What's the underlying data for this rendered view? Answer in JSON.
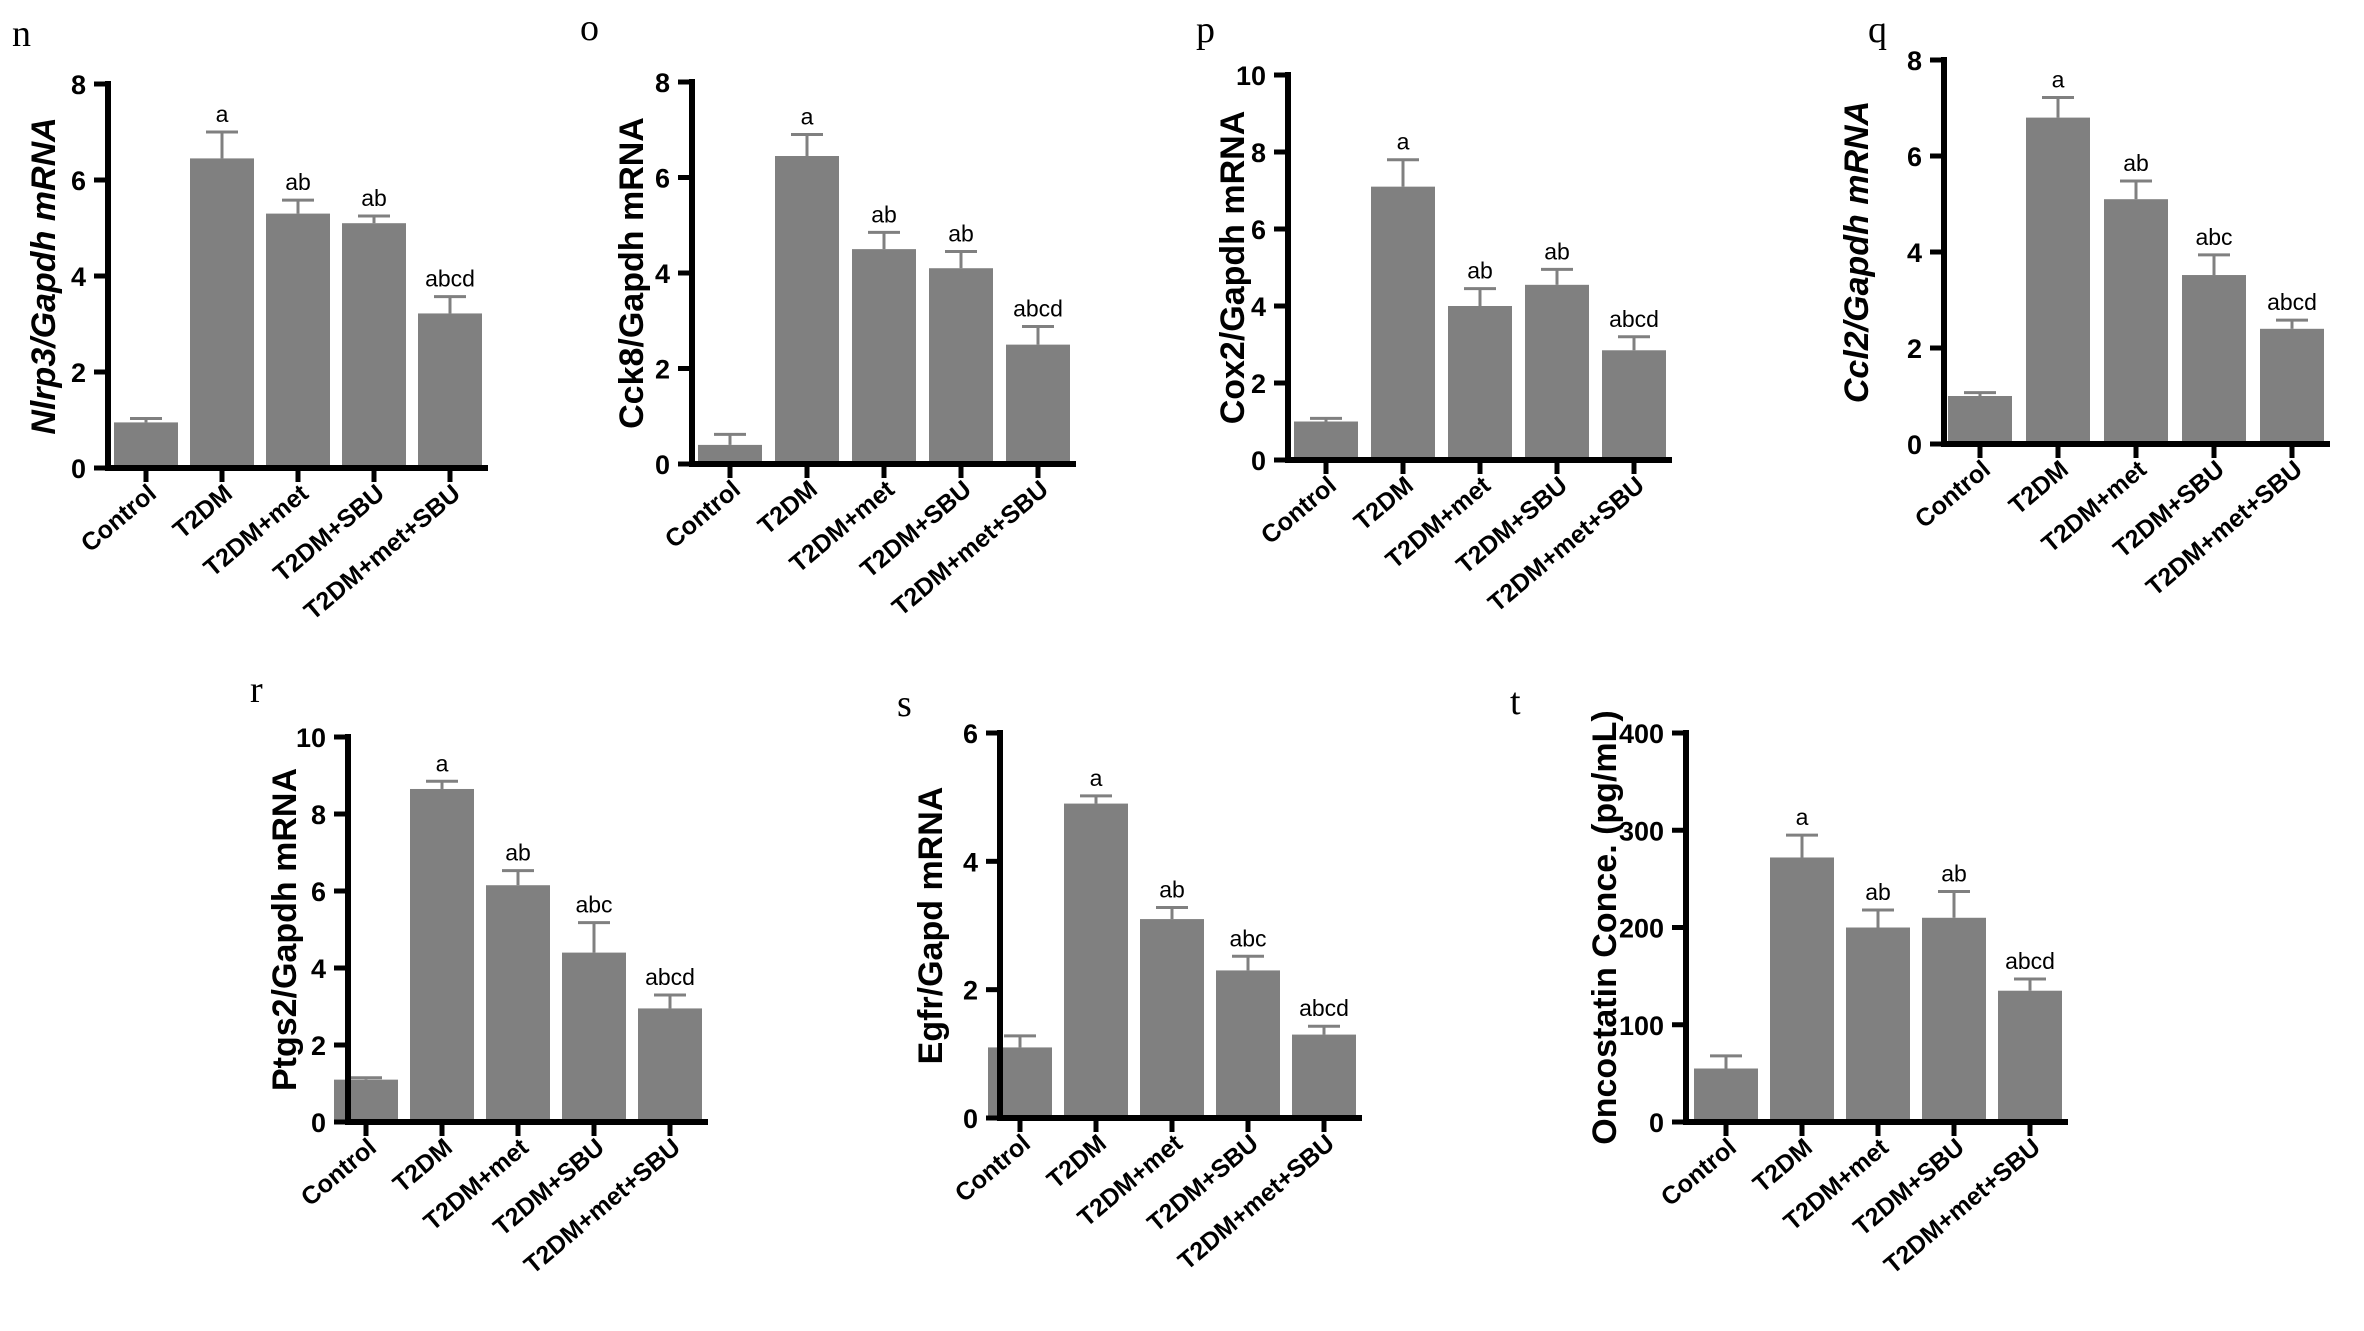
{
  "chart_data": [
    {
      "type": "bar",
      "panel": "n",
      "ylabel": "Nlrp3/Gapdh mRNA",
      "ylabel_italic": true,
      "categories": [
        "Control",
        "T2DM",
        "T2DM+met",
        "T2DM+SBU",
        "T2DM+met+SBU"
      ],
      "values": [
        0.95,
        6.45,
        5.3,
        5.1,
        3.22
      ],
      "errors": [
        0.08,
        0.55,
        0.28,
        0.15,
        0.35
      ],
      "significance": [
        "",
        "a",
        "ab",
        "ab",
        "abcd"
      ],
      "ylim": [
        0,
        8
      ],
      "yticks": [
        0,
        2,
        4,
        6,
        8
      ]
    },
    {
      "type": "bar",
      "panel": "o",
      "ylabel": "Cck8/Gapdh mRNA",
      "ylabel_italic": false,
      "categories": [
        "Control",
        "T2DM",
        "T2DM+met",
        "T2DM+SBU",
        "T2DM+met+SBU"
      ],
      "values": [
        0.4,
        6.45,
        4.5,
        4.1,
        2.5
      ],
      "errors": [
        0.22,
        0.45,
        0.35,
        0.35,
        0.38
      ],
      "significance": [
        "",
        "a",
        "ab",
        "ab",
        "abcd"
      ],
      "ylim": [
        0,
        8
      ],
      "yticks": [
        0,
        2,
        4,
        6,
        8
      ]
    },
    {
      "type": "bar",
      "panel": "p",
      "ylabel": "Cox2/Gapdh mRNA",
      "ylabel_italic": false,
      "categories": [
        "Control",
        "T2DM",
        "T2DM+met",
        "T2DM+SBU",
        "T2DM+met+SBU"
      ],
      "values": [
        1.0,
        7.1,
        4.0,
        4.55,
        2.85
      ],
      "errors": [
        0.08,
        0.7,
        0.45,
        0.4,
        0.35
      ],
      "significance": [
        "",
        "a",
        "ab",
        "ab",
        "abcd"
      ],
      "ylim": [
        0,
        10
      ],
      "yticks": [
        0,
        2,
        4,
        6,
        8,
        10
      ]
    },
    {
      "type": "bar",
      "panel": "q",
      "ylabel": "Ccl2/Gapdh mRNA",
      "ylabel_italic": true,
      "categories": [
        "Control",
        "T2DM",
        "T2DM+met",
        "T2DM+SBU",
        "T2DM+met+SBU"
      ],
      "values": [
        1.0,
        6.8,
        5.1,
        3.52,
        2.4
      ],
      "errors": [
        0.07,
        0.42,
        0.38,
        0.42,
        0.18
      ],
      "significance": [
        "",
        "a",
        "ab",
        "abc",
        "abcd"
      ],
      "ylim": [
        0,
        8
      ],
      "yticks": [
        0,
        2,
        4,
        6,
        8
      ]
    },
    {
      "type": "bar",
      "panel": "r",
      "ylabel": "Ptgs2/Gapdh mRNA",
      "ylabel_italic": false,
      "categories": [
        "Control",
        "T2DM",
        "T2DM+met",
        "T2DM+SBU",
        "T2DM+met+SBU"
      ],
      "values": [
        1.1,
        8.65,
        6.15,
        4.4,
        2.95
      ],
      "errors": [
        0.05,
        0.2,
        0.38,
        0.78,
        0.35
      ],
      "significance": [
        "",
        "a",
        "ab",
        "abc",
        "abcd"
      ],
      "ylim": [
        0,
        10
      ],
      "yticks": [
        0,
        2,
        4,
        6,
        8,
        10
      ]
    },
    {
      "type": "bar",
      "panel": "s",
      "ylabel": "Egfr/Gapd mRNA",
      "ylabel_italic": false,
      "categories": [
        "Control",
        "T2DM",
        "T2DM+met",
        "T2DM+SBU",
        "T2DM+met+SBU"
      ],
      "values": [
        1.1,
        4.9,
        3.1,
        2.3,
        1.3
      ],
      "errors": [
        0.18,
        0.12,
        0.18,
        0.22,
        0.13
      ],
      "significance": [
        "",
        "a",
        "ab",
        "abc",
        "abcd"
      ],
      "ylim": [
        0,
        6
      ],
      "yticks": [
        0,
        2,
        4,
        6
      ]
    },
    {
      "type": "bar",
      "panel": "t",
      "ylabel": "Oncostatin Conce. (pg/mL)",
      "ylabel_italic": false,
      "categories": [
        "Control",
        "T2DM",
        "T2DM+met",
        "T2DM+SBU",
        "T2DM+met+SBU"
      ],
      "values": [
        55,
        272,
        200,
        210,
        135
      ],
      "errors": [
        13,
        23,
        18,
        27,
        12
      ],
      "significance": [
        "",
        "a",
        "ab",
        "ab",
        "abcd"
      ],
      "ylim": [
        0,
        400
      ],
      "yticks": [
        0,
        100,
        200,
        300,
        400
      ]
    }
  ]
}
